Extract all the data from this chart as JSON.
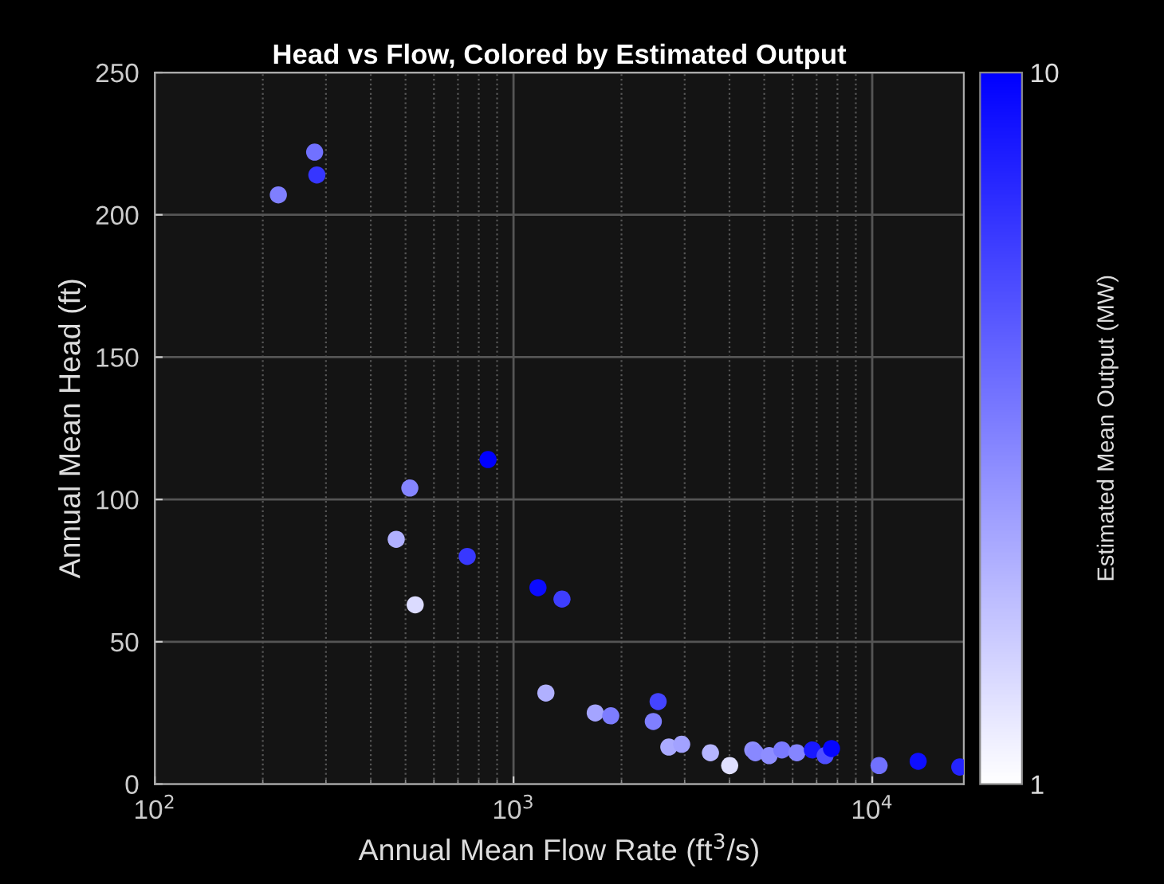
{
  "chart_data": {
    "type": "scatter",
    "title": "Head vs Flow, Colored by Estimated Output",
    "xlabel": "Annual Mean Flow Rate (ft$^{3}$/s)",
    "ylabel": "Annual Mean Head (ft)",
    "clabel": "Estimated Mean Output (MW)",
    "log": "x",
    "grid": true,
    "marker": "circle",
    "xlim": [
      100,
      18000
    ],
    "xticks": [
      {
        "value": 100,
        "label": "10$^{2}$"
      },
      {
        "value": 1000,
        "label": "10$^{3}$"
      },
      {
        "value": 10000,
        "label": "10$^{4}$"
      }
    ],
    "ylim": [
      0,
      250
    ],
    "yticks": [
      0,
      50,
      100,
      150,
      200,
      250
    ],
    "clim": [
      1,
      10
    ],
    "cticks": [
      1,
      10
    ],
    "series": [
      {
        "x": [
          279,
          283,
          221,
          849,
          514,
          471,
          743,
          532,
          1170,
          1365,
          1231,
          1690,
          1867,
          2530,
          2453,
          2710,
          2943,
          3540,
          4005,
          4645,
          4724,
          5160,
          5600,
          6165,
          6810,
          7390,
          7700,
          10450,
          13430,
          17540
        ],
        "values": [
          222,
          214,
          207,
          114,
          104,
          86,
          80,
          63,
          69,
          65,
          32,
          25,
          24,
          29,
          22,
          13,
          14,
          11,
          6.5,
          12,
          11,
          10,
          12,
          11,
          12,
          10,
          12.5,
          6.5,
          8,
          6
        ],
        "cvalues": [
          6.0,
          8.1,
          5.5,
          10,
          5.3,
          3.8,
          8.0,
          2.3,
          9.6,
          7.8,
          3.8,
          4.2,
          5.6,
          7.6,
          5.5,
          4.0,
          4.3,
          3.6,
          2.1,
          5.0,
          5.2,
          5.0,
          5.7,
          5.3,
          9.1,
          7.2,
          9.8,
          6.0,
          9.5,
          8.7
        ]
      }
    ]
  }
}
